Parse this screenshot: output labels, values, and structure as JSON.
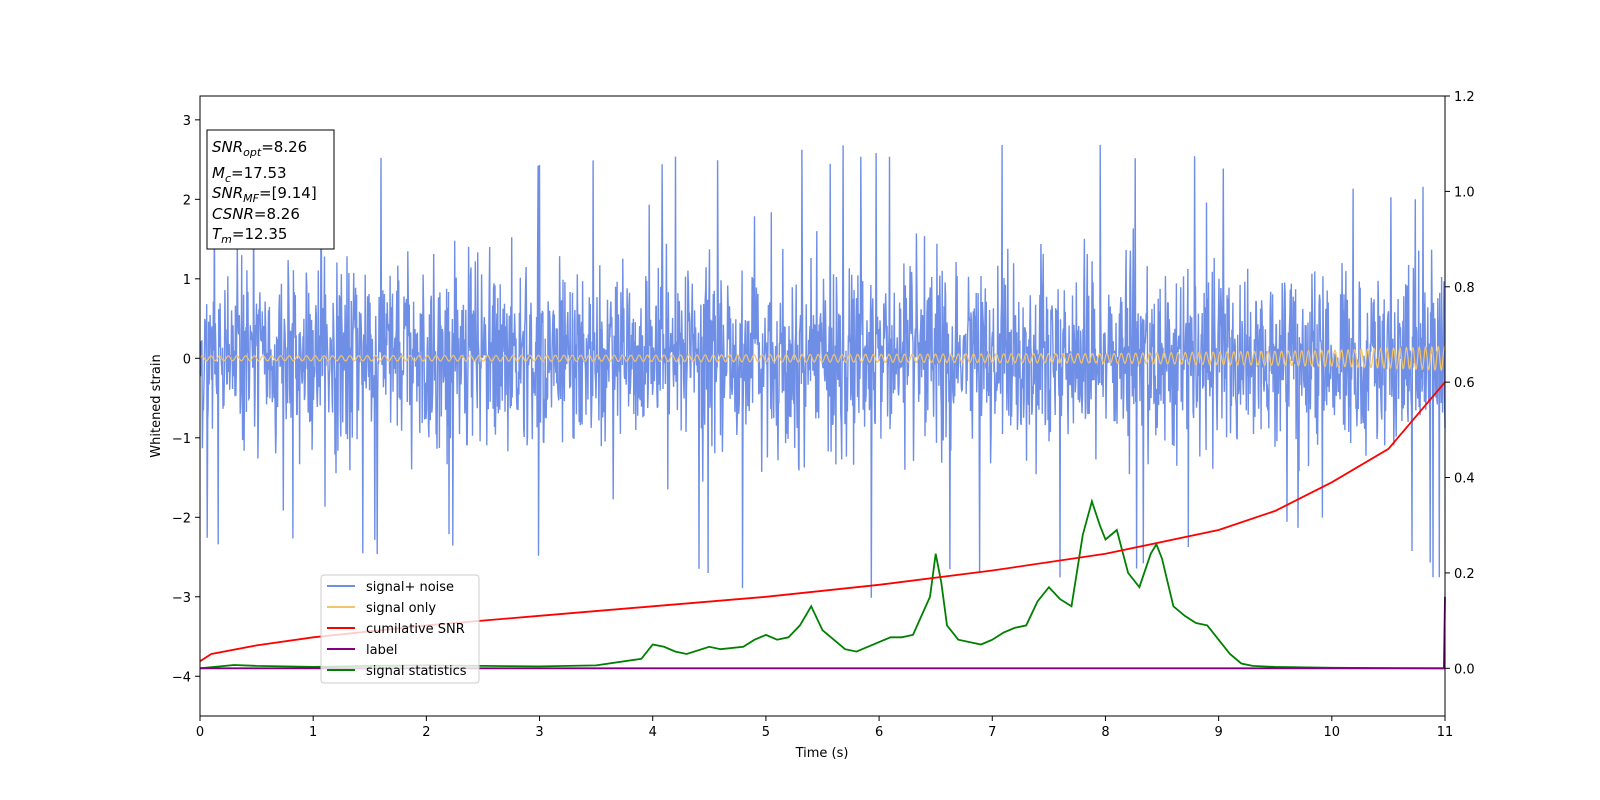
{
  "chart_data": {
    "type": "line",
    "title": "",
    "xlabel": "Time (s)",
    "ylabel": "Whitened strain",
    "ylabel_right": "",
    "xlim": [
      0,
      11
    ],
    "ylim": [
      -4.5,
      3.3
    ],
    "ylim_right": [
      -0.1,
      1.2
    ],
    "x_ticks": [
      0,
      1,
      2,
      3,
      4,
      5,
      6,
      7,
      8,
      9,
      10,
      11
    ],
    "y_ticks": [
      3,
      2,
      1,
      0,
      -1,
      -2,
      -3,
      -4
    ],
    "y_tick_labels": [
      "3",
      "2",
      "1",
      "0",
      "−1",
      "−2",
      "−3",
      "−4"
    ],
    "y_ticks_right": [
      1.2,
      1.0,
      0.8,
      0.6,
      0.4,
      0.2,
      0.0
    ],
    "y_tick_labels_right": [
      "1.2",
      "1.0",
      "0.8",
      "0.6",
      "0.4",
      "0.2",
      "0.0"
    ],
    "grid": false,
    "legend_position": "lower-left",
    "annotation": {
      "snr_opt": {
        "base": "SNR",
        "sub": "opt",
        "value": "=8.26"
      },
      "mc": {
        "base": "M",
        "sub": "c",
        "value": "=17.53"
      },
      "snr_mf": {
        "base": "SNR",
        "sub": "MF",
        "value": "=[9.14]"
      },
      "csnr": {
        "base": "CSNR",
        "sub": "",
        "value": "=8.26"
      },
      "tm": {
        "base": "T",
        "sub": "m",
        "value": "=12.35"
      }
    },
    "series": [
      {
        "name": "signal+ noise",
        "color": "#6f8ee6",
        "axis": "left",
        "description_points": {
          "x": [
            0,
            1,
            2,
            3,
            4,
            5,
            6,
            7,
            8,
            9,
            10,
            11
          ],
          "y_spikes_up": [
            2.2,
            2.3,
            2.5,
            2.4,
            2.5,
            2.5,
            2.6,
            2.6,
            2.6,
            2.5,
            2.1,
            2.1
          ],
          "y_spikes_down": [
            -2.3,
            -2.4,
            -2.4,
            -2.5,
            -2.4,
            -2.9,
            -3.1,
            -2.6,
            -2.7,
            -2.4,
            -2.0,
            -2.7
          ]
        }
      },
      {
        "name": "signal only",
        "color": "#f2c46d",
        "axis": "left",
        "amplitude_envelope": {
          "x": [
            0,
            4,
            8,
            10,
            11
          ],
          "amp": [
            0.03,
            0.04,
            0.06,
            0.1,
            0.15
          ]
        }
      },
      {
        "name": "cumilative SNR",
        "color": "#ff0000",
        "axis": "right",
        "x": [
          0,
          0.1,
          0.5,
          1,
          2,
          3,
          4,
          5,
          6,
          7,
          8,
          9,
          9.5,
          10,
          10.5,
          11
        ],
        "y": [
          0.015,
          0.03,
          0.048,
          0.065,
          0.09,
          0.11,
          0.13,
          0.15,
          0.175,
          0.205,
          0.24,
          0.29,
          0.33,
          0.39,
          0.46,
          0.6
        ]
      },
      {
        "name": "label",
        "color": "#800080",
        "axis": "right",
        "x": [
          0,
          10.99,
          11
        ],
        "y": [
          0,
          0,
          0.15
        ]
      },
      {
        "name": "signal statistics",
        "color": "#008000",
        "axis": "right",
        "x": [
          0,
          0.3,
          0.5,
          1,
          1.5,
          2,
          2.5,
          3,
          3.5,
          3.9,
          4.0,
          4.1,
          4.2,
          4.3,
          4.5,
          4.6,
          4.8,
          4.9,
          5.0,
          5.1,
          5.2,
          5.3,
          5.4,
          5.5,
          5.6,
          5.7,
          5.8,
          6.0,
          6.1,
          6.2,
          6.3,
          6.45,
          6.5,
          6.55,
          6.6,
          6.7,
          6.8,
          6.9,
          7.0,
          7.1,
          7.2,
          7.3,
          7.4,
          7.5,
          7.6,
          7.7,
          7.8,
          7.88,
          7.95,
          8.0,
          8.1,
          8.2,
          8.3,
          8.4,
          8.45,
          8.5,
          8.6,
          8.7,
          8.8,
          8.9,
          9.0,
          9.1,
          9.2,
          9.3,
          9.5,
          10,
          11
        ],
        "y": [
          0.0,
          0.007,
          0.005,
          0.003,
          0.005,
          0.006,
          0.005,
          0.004,
          0.006,
          0.02,
          0.05,
          0.045,
          0.035,
          0.03,
          0.045,
          0.04,
          0.045,
          0.06,
          0.07,
          0.06,
          0.065,
          0.09,
          0.13,
          0.08,
          0.06,
          0.04,
          0.035,
          0.055,
          0.065,
          0.065,
          0.07,
          0.15,
          0.24,
          0.18,
          0.09,
          0.06,
          0.055,
          0.05,
          0.06,
          0.075,
          0.085,
          0.09,
          0.14,
          0.17,
          0.145,
          0.13,
          0.28,
          0.35,
          0.3,
          0.27,
          0.29,
          0.2,
          0.17,
          0.24,
          0.26,
          0.23,
          0.13,
          0.11,
          0.095,
          0.09,
          0.06,
          0.03,
          0.01,
          0.005,
          0.003,
          0.001,
          0.0
        ]
      }
    ]
  }
}
